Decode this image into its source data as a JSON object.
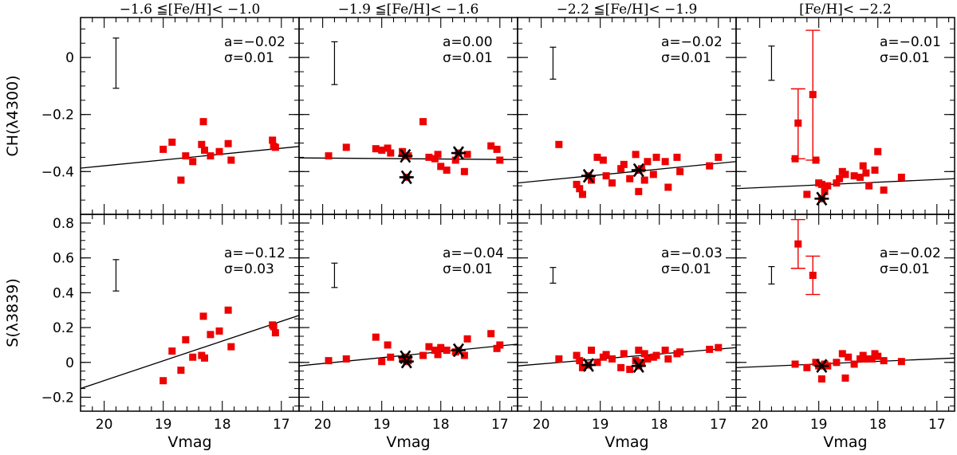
{
  "chart_data": {
    "type": "scatter",
    "title": "",
    "xlabel": "Vmag",
    "xlim": [
      20.4,
      16.7
    ],
    "x_ticks": [
      20,
      19,
      18,
      17
    ],
    "colors": {
      "star": "#ee0000",
      "marker": "#000000",
      "line": "#000000"
    },
    "columns": [
      "−1.6 ≦[Fe/H]< −1.0",
      "−1.9 ≦[Fe/H]< −1.6",
      "−2.2 ≦[Fe/H]< −1.9",
      "[Fe/H]< −2.2"
    ],
    "rows": [
      {
        "ylabel": "CH(λ4300)",
        "ylim": [
          -0.55,
          0.14
        ],
        "y_ticks": [
          0,
          -0.2,
          -0.4
        ],
        "y_tick_labels": [
          "0",
          "−0.2",
          "−0.4"
        ],
        "panels": [
          {
            "slope": "a=−0.02",
            "sigma": "σ=0.01",
            "fit": [
              [
                20.4,
                -0.388
              ],
              [
                16.7,
                -0.312
              ]
            ],
            "errbar": {
              "x": 19.8,
              "y": -0.02,
              "err": 0.088
            },
            "points": [
              [
                19.0,
                -0.322
              ],
              [
                18.85,
                -0.297
              ],
              [
                18.7,
                -0.43
              ],
              [
                18.62,
                -0.345
              ],
              [
                18.5,
                -0.365
              ],
              [
                18.35,
                -0.305
              ],
              [
                18.32,
                -0.225
              ],
              [
                18.3,
                -0.325
              ],
              [
                18.2,
                -0.345
              ],
              [
                18.05,
                -0.33
              ],
              [
                17.9,
                -0.302
              ],
              [
                17.85,
                -0.36
              ],
              [
                17.15,
                -0.29
              ],
              [
                17.13,
                -0.312
              ],
              [
                17.1,
                -0.315
              ]
            ],
            "stars": [],
            "big_err": []
          },
          {
            "slope": "a=0.00",
            "sigma": "σ=0.01",
            "fit": [
              [
                20.4,
                -0.352
              ],
              [
                16.7,
                -0.358
              ]
            ],
            "errbar": {
              "x": 19.8,
              "y": -0.02,
              "err": 0.075
            },
            "points": [
              [
                19.9,
                -0.345
              ],
              [
                19.6,
                -0.315
              ],
              [
                19.1,
                -0.32
              ],
              [
                19.0,
                -0.325
              ],
              [
                18.9,
                -0.318
              ],
              [
                18.85,
                -0.335
              ],
              [
                18.65,
                -0.33
              ],
              [
                18.55,
                -0.345
              ],
              [
                18.3,
                -0.225
              ],
              [
                18.2,
                -0.35
              ],
              [
                18.1,
                -0.355
              ],
              [
                18.05,
                -0.34
              ],
              [
                18.0,
                -0.382
              ],
              [
                17.9,
                -0.395
              ],
              [
                17.75,
                -0.36
              ],
              [
                17.6,
                -0.4
              ],
              [
                17.55,
                -0.34
              ],
              [
                17.15,
                -0.31
              ],
              [
                17.05,
                -0.322
              ],
              [
                17.0,
                -0.36
              ]
            ],
            "stars": [
              [
                18.6,
                -0.345
              ],
              [
                18.58,
                -0.42
              ],
              [
                17.7,
                -0.335
              ]
            ],
            "big_err": []
          },
          {
            "slope": "a=−0.02",
            "sigma": "σ=0.01",
            "fit": [
              [
                20.4,
                -0.44
              ],
              [
                16.7,
                -0.365
              ]
            ],
            "errbar": {
              "x": 19.8,
              "y": -0.02,
              "err": 0.056
            },
            "points": [
              [
                19.7,
                -0.305
              ],
              [
                19.4,
                -0.445
              ],
              [
                19.35,
                -0.46
              ],
              [
                19.3,
                -0.48
              ],
              [
                19.15,
                -0.43
              ],
              [
                19.05,
                -0.35
              ],
              [
                18.95,
                -0.36
              ],
              [
                18.9,
                -0.415
              ],
              [
                18.8,
                -0.44
              ],
              [
                18.65,
                -0.39
              ],
              [
                18.6,
                -0.375
              ],
              [
                18.5,
                -0.425
              ],
              [
                18.4,
                -0.34
              ],
              [
                18.35,
                -0.47
              ],
              [
                18.3,
                -0.39
              ],
              [
                18.25,
                -0.43
              ],
              [
                18.2,
                -0.365
              ],
              [
                18.1,
                -0.41
              ],
              [
                18.05,
                -0.35
              ],
              [
                17.9,
                -0.365
              ],
              [
                17.85,
                -0.455
              ],
              [
                17.7,
                -0.35
              ],
              [
                17.65,
                -0.4
              ],
              [
                17.15,
                -0.38
              ],
              [
                17.0,
                -0.35
              ]
            ],
            "stars": [
              [
                19.2,
                -0.415
              ],
              [
                18.35,
                -0.395
              ]
            ],
            "big_err": []
          },
          {
            "slope": "a=−0.01",
            "sigma": "σ=0.01",
            "fit": [
              [
                20.4,
                -0.46
              ],
              [
                16.7,
                -0.425
              ]
            ],
            "errbar": {
              "x": 19.8,
              "y": -0.02,
              "err": 0.06
            },
            "points": [
              [
                19.4,
                -0.355
              ],
              [
                19.2,
                -0.48
              ],
              [
                19.05,
                -0.36
              ],
              [
                19.0,
                -0.44
              ],
              [
                18.95,
                -0.445
              ],
              [
                18.9,
                -0.47
              ],
              [
                18.85,
                -0.45
              ],
              [
                18.7,
                -0.44
              ],
              [
                18.65,
                -0.425
              ],
              [
                18.6,
                -0.4
              ],
              [
                18.55,
                -0.41
              ],
              [
                18.4,
                -0.415
              ],
              [
                18.3,
                -0.42
              ],
              [
                18.25,
                -0.38
              ],
              [
                18.2,
                -0.405
              ],
              [
                18.15,
                -0.45
              ],
              [
                18.05,
                -0.395
              ],
              [
                18.0,
                -0.33
              ],
              [
                17.9,
                -0.465
              ],
              [
                17.6,
                -0.42
              ]
            ],
            "stars": [
              [
                18.95,
                -0.495
              ]
            ],
            "big_err": [
              {
                "x": 19.35,
                "y": -0.23,
                "lo": -0.355,
                "hi": -0.11
              },
              {
                "x": 19.1,
                "y": -0.13,
                "lo": -0.36,
                "hi": 0.095
              }
            ]
          }
        ]
      },
      {
        "ylabel": "S(λ3839)",
        "ylim": [
          -0.28,
          0.85
        ],
        "y_ticks": [
          0.8,
          0.6,
          0.4,
          0.2,
          0,
          -0.2
        ],
        "y_tick_labels": [
          "0.8",
          "0.6",
          "0.4",
          "0.2",
          "0",
          "−0.2"
        ],
        "panels": [
          {
            "slope": "a=−0.12",
            "sigma": "σ=0.03",
            "fit": [
              [
                20.4,
                -0.15
              ],
              [
                16.7,
                0.27
              ]
            ],
            "errbar": {
              "x": 19.8,
              "y": 0.5,
              "err": 0.09
            },
            "points": [
              [
                19.0,
                -0.105
              ],
              [
                18.85,
                0.065
              ],
              [
                18.7,
                -0.045
              ],
              [
                18.62,
                0.13
              ],
              [
                18.5,
                0.03
              ],
              [
                18.35,
                0.04
              ],
              [
                18.32,
                0.265
              ],
              [
                18.3,
                0.025
              ],
              [
                18.2,
                0.16
              ],
              [
                18.05,
                0.18
              ],
              [
                17.9,
                0.3
              ],
              [
                17.85,
                0.09
              ],
              [
                17.15,
                0.215
              ],
              [
                17.13,
                0.205
              ],
              [
                17.1,
                0.17
              ]
            ],
            "stars": [],
            "big_err": []
          },
          {
            "slope": "a=−0.04",
            "sigma": "σ=0.01",
            "fit": [
              [
                20.4,
                -0.02
              ],
              [
                16.7,
                0.105
              ]
            ],
            "errbar": {
              "x": 19.8,
              "y": 0.5,
              "err": 0.07
            },
            "points": [
              [
                19.9,
                0.01
              ],
              [
                19.6,
                0.02
              ],
              [
                19.1,
                0.145
              ],
              [
                19.0,
                0.005
              ],
              [
                18.9,
                0.1
              ],
              [
                18.85,
                0.03
              ],
              [
                18.65,
                0.02
              ],
              [
                18.55,
                0.01
              ],
              [
                18.3,
                0.04
              ],
              [
                18.2,
                0.09
              ],
              [
                18.1,
                0.07
              ],
              [
                18.05,
                0.045
              ],
              [
                18.0,
                0.085
              ],
              [
                17.9,
                0.07
              ],
              [
                17.75,
                0.06
              ],
              [
                17.6,
                0.04
              ],
              [
                17.55,
                0.135
              ],
              [
                17.15,
                0.165
              ],
              [
                17.05,
                0.08
              ],
              [
                17.0,
                0.1
              ]
            ],
            "stars": [
              [
                18.6,
                0.03
              ],
              [
                18.58,
                0.005
              ],
              [
                17.7,
                0.07
              ]
            ],
            "big_err": []
          },
          {
            "slope": "a=−0.03",
            "sigma": "σ=0.01",
            "fit": [
              [
                20.4,
                -0.02
              ],
              [
                16.7,
                0.085
              ]
            ],
            "errbar": {
              "x": 19.8,
              "y": 0.5,
              "err": 0.045
            },
            "points": [
              [
                19.7,
                0.02
              ],
              [
                19.4,
                0.04
              ],
              [
                19.35,
                0.01
              ],
              [
                19.3,
                -0.03
              ],
              [
                19.15,
                0.07
              ],
              [
                19.05,
                0.0
              ],
              [
                18.95,
                0.03
              ],
              [
                18.9,
                0.045
              ],
              [
                18.8,
                0.02
              ],
              [
                18.65,
                -0.03
              ],
              [
                18.6,
                0.05
              ],
              [
                18.5,
                -0.04
              ],
              [
                18.4,
                0.01
              ],
              [
                18.35,
                0.07
              ],
              [
                18.3,
                0.0
              ],
              [
                18.25,
                0.05
              ],
              [
                18.2,
                0.02
              ],
              [
                18.1,
                0.03
              ],
              [
                18.05,
                0.04
              ],
              [
                17.9,
                0.07
              ],
              [
                17.85,
                0.02
              ],
              [
                17.7,
                0.05
              ],
              [
                17.65,
                0.06
              ],
              [
                17.15,
                0.075
              ],
              [
                17.0,
                0.085
              ]
            ],
            "stars": [
              [
                19.2,
                -0.015
              ],
              [
                18.35,
                -0.02
              ]
            ],
            "big_err": []
          },
          {
            "slope": "a=−0.02",
            "sigma": "σ=0.01",
            "fit": [
              [
                20.4,
                -0.03
              ],
              [
                16.7,
                0.025
              ]
            ],
            "errbar": {
              "x": 19.8,
              "y": 0.5,
              "err": 0.05
            },
            "points": [
              [
                19.4,
                -0.01
              ],
              [
                19.2,
                -0.03
              ],
              [
                19.05,
                0.0
              ],
              [
                19.0,
                -0.02
              ],
              [
                18.95,
                -0.095
              ],
              [
                18.9,
                -0.01
              ],
              [
                18.85,
                -0.02
              ],
              [
                18.7,
                0.0
              ],
              [
                18.6,
                0.05
              ],
              [
                18.55,
                -0.09
              ],
              [
                18.5,
                0.03
              ],
              [
                18.4,
                -0.01
              ],
              [
                18.3,
                0.02
              ],
              [
                18.25,
                0.04
              ],
              [
                18.2,
                0.02
              ],
              [
                18.1,
                0.02
              ],
              [
                18.05,
                0.05
              ],
              [
                18.0,
                0.035
              ],
              [
                17.9,
                0.01
              ],
              [
                17.6,
                0.005
              ]
            ],
            "stars": [
              [
                18.95,
                -0.02
              ]
            ],
            "big_err": [
              {
                "x": 19.35,
                "y": 0.68,
                "lo": 0.54,
                "hi": 0.82
              },
              {
                "x": 19.1,
                "y": 0.5,
                "lo": 0.39,
                "hi": 0.61
              }
            ]
          }
        ]
      }
    ]
  }
}
